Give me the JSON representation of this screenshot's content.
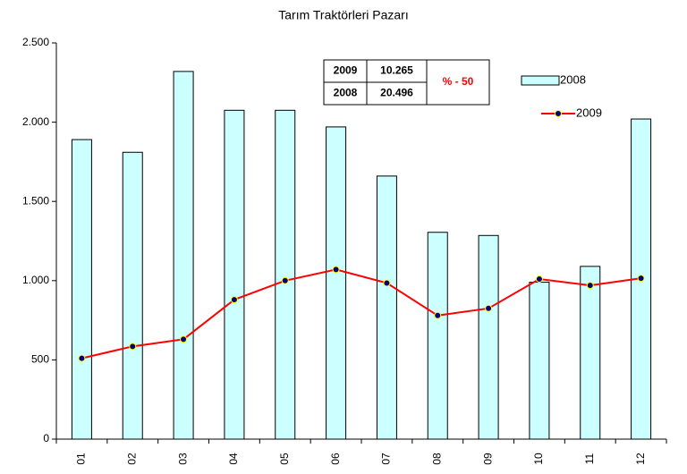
{
  "chart_data": {
    "type": "bar_line",
    "title": "Tarım Traktörleri Pazarı",
    "categories": [
      "01",
      "02",
      "03",
      "04",
      "05",
      "06",
      "07",
      "08",
      "09",
      "10",
      "11",
      "12"
    ],
    "series": [
      {
        "name": "2008",
        "type": "bar",
        "color": "#ccffff",
        "values": [
          1890,
          1810,
          2320,
          2075,
          2075,
          1970,
          1660,
          1305,
          1285,
          990,
          1090,
          2020
        ]
      },
      {
        "name": "2009",
        "type": "line",
        "color": "#ff0000",
        "marker_color": "#000080",
        "values": [
          510,
          585,
          630,
          880,
          1000,
          1070,
          985,
          780,
          825,
          1010,
          970,
          1015
        ]
      }
    ],
    "ylim": [
      0,
      2500
    ],
    "yticks": [
      0,
      {
        "value": 500,
        "label": "500"
      },
      {
        "value": 1000,
        "label": "1.000"
      },
      {
        "value": 1500,
        "label": "1.500"
      },
      {
        "value": 2000,
        "label": "2.000"
      },
      {
        "value": 2500,
        "label": "2.500"
      }
    ],
    "legend": "upper right",
    "table": {
      "rows": [
        [
          "2009",
          "10.265"
        ],
        [
          "2008",
          "20.496"
        ]
      ],
      "change": "% - 50"
    }
  }
}
